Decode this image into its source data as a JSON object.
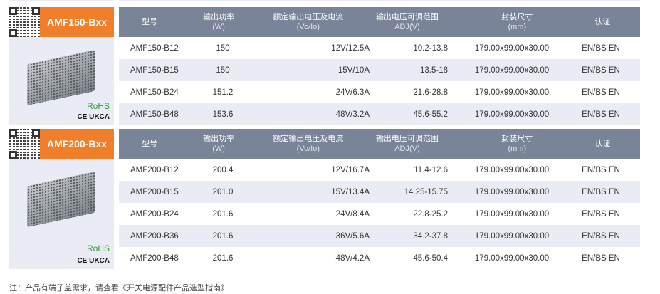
{
  "headers": {
    "model": "型号",
    "power": "输出功率",
    "power_unit": "(W)",
    "rated": "额定输出电压及电流",
    "rated_unit": "(Vo/Io)",
    "adj": "输出电压可调范围",
    "adj_unit": "ADJ(V)",
    "size": "封装尺寸",
    "size_unit": "(mm)",
    "cert": "认证"
  },
  "series": [
    {
      "name": "AMF150-Bxx",
      "rohs": "RoHS",
      "marks": "CE UKCA",
      "rows": [
        [
          "AMF150-B12",
          "150",
          "12V/12.5A",
          "10.2-13.8",
          "179.00x99.00x30.00",
          "EN/BS EN"
        ],
        [
          "AMF150-B15",
          "150",
          "15V/10A",
          "13.5-18",
          "179.00x99.00x30.00",
          "EN/BS EN"
        ],
        [
          "AMF150-B24",
          "151.2",
          "24V/6.3A",
          "21.6-28.8",
          "179.00x99.00x30.00",
          "EN/BS EN"
        ],
        [
          "AMF150-B48",
          "153.6",
          "48V/3.2A",
          "45.6-55.2",
          "179.00x99.00x30.00",
          "EN/BS EN"
        ]
      ]
    },
    {
      "name": "AMF200-Bxx",
      "rohs": "RoHS",
      "marks": "CE UKCA",
      "rows": [
        [
          "AMF200-B12",
          "200.4",
          "12V/16.7A",
          "11.4-12.6",
          "179.00x99.00x30.00",
          "EN/BS EN"
        ],
        [
          "AMF200-B15",
          "201.0",
          "15V/13.4A",
          "14.25-15.75",
          "179.00x99.00x30.00",
          "EN/BS EN"
        ],
        [
          "AMF200-B24",
          "201.6",
          "24V/8.4A",
          "22.8-25.2",
          "179.00x99.00x30.00",
          "EN/BS EN"
        ],
        [
          "AMF200-B36",
          "201.6",
          "36V/5.6A",
          "34.2-37.8",
          "179.00x99.00x30.00",
          "EN/BS EN"
        ],
        [
          "AMF200-B48",
          "201.6",
          "48V/4.2A",
          "45.6-50.4",
          "179.00x99.00x30.00",
          "EN/BS EN"
        ]
      ]
    }
  ],
  "footnote": "注：产品有端子盖需求，请查看《开关电源配件产品选型指南》",
  "colors": {
    "accent": "#ef7f2b",
    "header": "#7a8499",
    "stripe": "#e9ecf4",
    "rohs": "#2e9a3a"
  }
}
